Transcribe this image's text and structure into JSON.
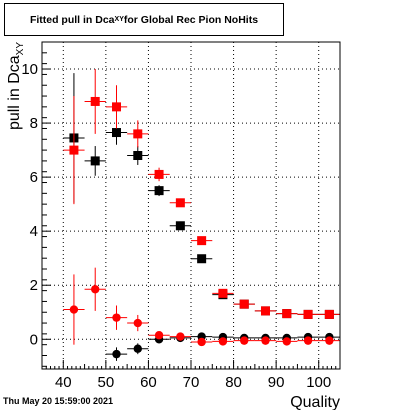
{
  "header": {
    "title_main": "Fitted pull in Dca",
    "title_sub": "XY",
    "title_rest": " for Global Rec Pion NoHits"
  },
  "footer": {
    "date": "Thu May 20 15:59:00 2021"
  },
  "chart_data": {
    "type": "scatter",
    "xlabel": "Quality",
    "ylabel_main": "pull in Dca",
    "ylabel_sub": "XY",
    "xlim": [
      35,
      105
    ],
    "ylim": [
      -1.1,
      11
    ],
    "xticks": [
      40,
      50,
      60,
      70,
      80,
      90,
      100
    ],
    "yticks": [
      0,
      2,
      4,
      6,
      8,
      10
    ],
    "grid": true,
    "series": [
      {
        "marker": "square",
        "color": "#000000",
        "points": [
          {
            "x": 42.5,
            "y": 7.45,
            "err": 2.4
          },
          {
            "x": 47.5,
            "y": 6.6,
            "err": 0.55
          },
          {
            "x": 52.5,
            "y": 7.65,
            "err": 0.45
          },
          {
            "x": 57.5,
            "y": 6.8,
            "err": 0.35
          },
          {
            "x": 62.5,
            "y": 5.5,
            "err": 0.2
          },
          {
            "x": 67.5,
            "y": 4.2,
            "err": 0.1
          },
          {
            "x": 72.5,
            "y": 2.98,
            "err": 0.08
          },
          {
            "x": 77.5,
            "y": 1.65,
            "err": 0.05
          },
          {
            "x": 82.5,
            "y": 1.3,
            "err": 0.04
          },
          {
            "x": 87.5,
            "y": 1.05,
            "err": 0.03
          },
          {
            "x": 92.5,
            "y": 0.95,
            "err": 0.03
          },
          {
            "x": 97.5,
            "y": 0.92,
            "err": 0.03
          },
          {
            "x": 102.5,
            "y": 0.92,
            "err": 0.03
          }
        ]
      },
      {
        "marker": "square",
        "color": "#ff0000",
        "points": [
          {
            "x": 42.5,
            "y": 7.0,
            "err": 2.0
          },
          {
            "x": 47.5,
            "y": 8.8,
            "err": 1.2
          },
          {
            "x": 52.5,
            "y": 8.6,
            "err": 0.8
          },
          {
            "x": 57.5,
            "y": 7.6,
            "err": 0.5
          },
          {
            "x": 62.5,
            "y": 6.1,
            "err": 0.25
          },
          {
            "x": 67.5,
            "y": 5.05,
            "err": 0.12
          },
          {
            "x": 72.5,
            "y": 3.65,
            "err": 0.08
          },
          {
            "x": 77.5,
            "y": 1.7,
            "err": 0.06
          },
          {
            "x": 82.5,
            "y": 1.3,
            "err": 0.04
          },
          {
            "x": 87.5,
            "y": 1.05,
            "err": 0.03
          },
          {
            "x": 92.5,
            "y": 0.95,
            "err": 0.03
          },
          {
            "x": 97.5,
            "y": 0.92,
            "err": 0.03
          },
          {
            "x": 102.5,
            "y": 0.92,
            "err": 0.03
          }
        ]
      },
      {
        "marker": "circle",
        "color": "#000000",
        "points": [
          {
            "x": 52.5,
            "y": -0.55,
            "err": 0.25
          },
          {
            "x": 57.5,
            "y": -0.35,
            "err": 0.2
          },
          {
            "x": 62.5,
            "y": 0.0,
            "err": 0.08
          },
          {
            "x": 67.5,
            "y": 0.05,
            "err": 0.05
          },
          {
            "x": 72.5,
            "y": 0.1,
            "err": 0.04
          },
          {
            "x": 77.5,
            "y": 0.08,
            "err": 0.03
          },
          {
            "x": 82.5,
            "y": 0.05,
            "err": 0.03
          },
          {
            "x": 87.5,
            "y": 0.05,
            "err": 0.02
          },
          {
            "x": 92.5,
            "y": 0.05,
            "err": 0.02
          },
          {
            "x": 97.5,
            "y": 0.08,
            "err": 0.02
          },
          {
            "x": 102.5,
            "y": 0.08,
            "err": 0.02
          }
        ]
      },
      {
        "marker": "circle",
        "color": "#ff0000",
        "points": [
          {
            "x": 42.5,
            "y": 1.1,
            "err": 1.3
          },
          {
            "x": 47.5,
            "y": 1.85,
            "err": 0.8
          },
          {
            "x": 52.5,
            "y": 0.8,
            "err": 0.45
          },
          {
            "x": 57.5,
            "y": 0.6,
            "err": 0.3
          },
          {
            "x": 62.5,
            "y": 0.15,
            "err": 0.12
          },
          {
            "x": 67.5,
            "y": 0.1,
            "err": 0.08
          },
          {
            "x": 72.5,
            "y": -0.1,
            "err": 0.05
          },
          {
            "x": 77.5,
            "y": -0.08,
            "err": 0.04
          },
          {
            "x": 82.5,
            "y": -0.05,
            "err": 0.03
          },
          {
            "x": 87.5,
            "y": -0.05,
            "err": 0.03
          },
          {
            "x": 92.5,
            "y": -0.08,
            "err": 0.03
          },
          {
            "x": 97.5,
            "y": -0.05,
            "err": 0.03
          },
          {
            "x": 102.5,
            "y": -0.05,
            "err": 0.03
          }
        ]
      }
    ]
  }
}
